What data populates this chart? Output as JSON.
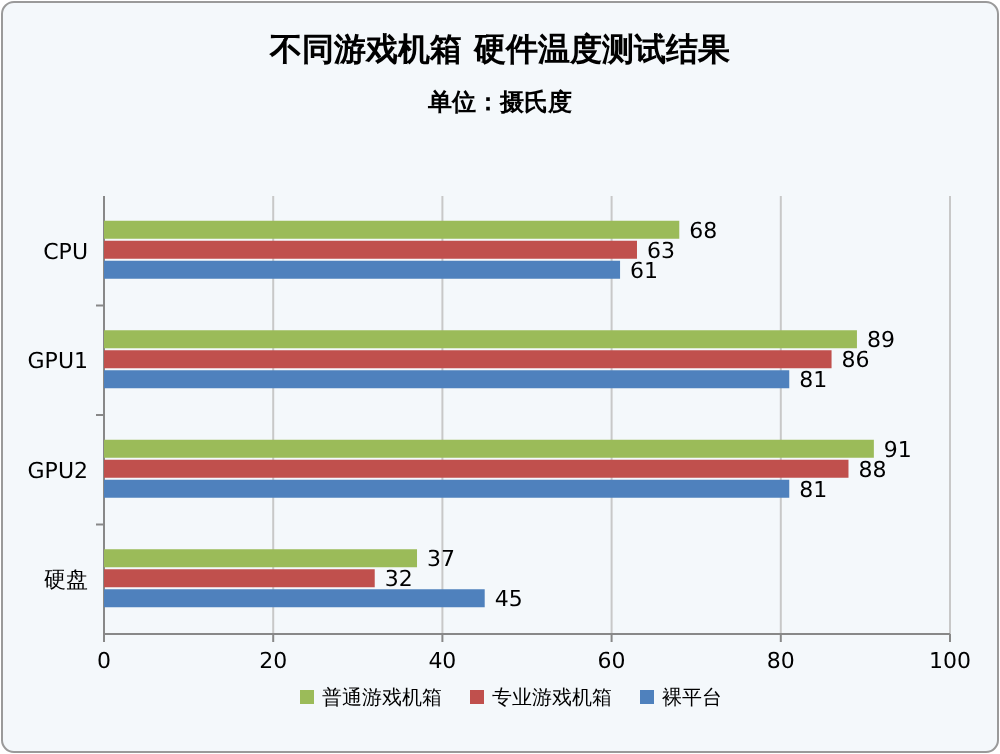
{
  "chart_data": {
    "type": "bar",
    "orientation": "horizontal",
    "title": "不同游戏机箱  硬件温度测试结果",
    "subtitle": "单位：摄氏度",
    "categories": [
      "CPU",
      "GPU1",
      "GPU2",
      "硬盘"
    ],
    "series": [
      {
        "name": "普通游戏机箱",
        "color": "#9bbb59",
        "values": [
          68,
          89,
          91,
          37
        ]
      },
      {
        "name": "专业游戏机箱",
        "color": "#c0504d",
        "values": [
          63,
          86,
          88,
          32
        ]
      },
      {
        "name": "裸平台",
        "color": "#4f81bd",
        "values": [
          61,
          81,
          81,
          45
        ]
      }
    ],
    "xlim": [
      0,
      100
    ],
    "xticks": [
      0,
      20,
      40,
      60,
      80,
      100
    ],
    "grid": "x",
    "legend": "bottom",
    "data_labels": true
  }
}
